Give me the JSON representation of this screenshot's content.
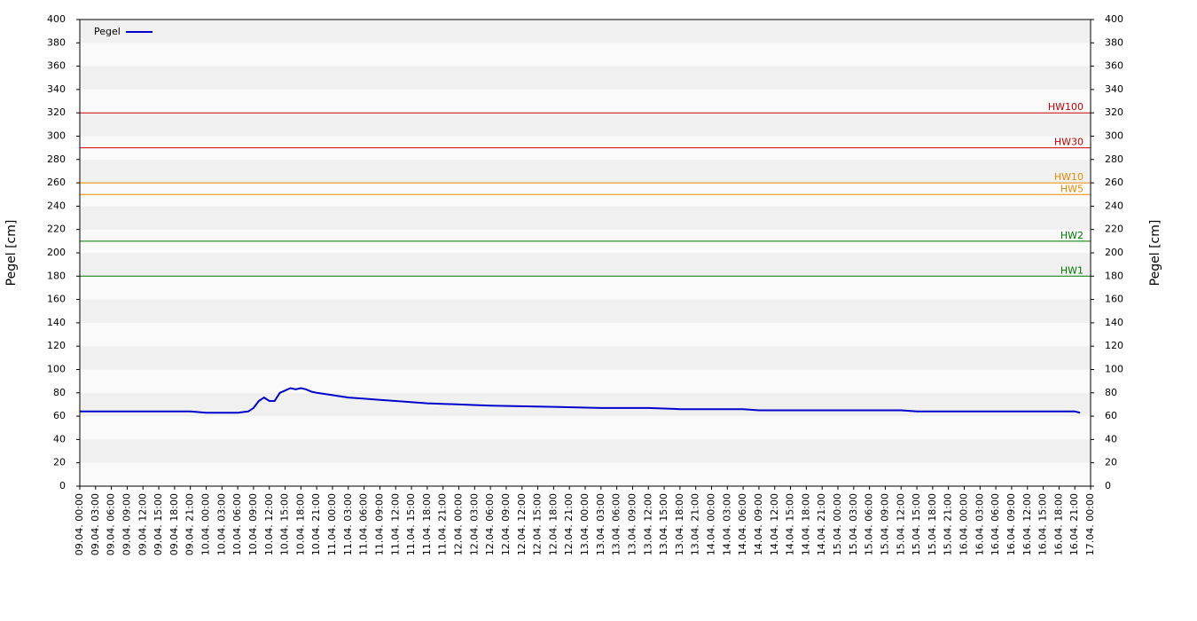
{
  "chart_data": {
    "type": "line",
    "ylabel": "Pegel [cm]",
    "y2label": "Pegel [cm]",
    "ylim": [
      0,
      400
    ],
    "yticks": [
      0,
      20,
      40,
      60,
      80,
      100,
      120,
      140,
      160,
      180,
      200,
      220,
      240,
      260,
      280,
      300,
      320,
      340,
      360,
      380,
      400
    ],
    "y2lim": [
      0,
      400
    ],
    "y2ticks": [
      0,
      20,
      40,
      60,
      80,
      100,
      120,
      140,
      160,
      180,
      200,
      220,
      240,
      260,
      280,
      300,
      320,
      340,
      360,
      380,
      400
    ],
    "xlim": [
      "09.04. 00:00",
      "17.04. 00:00"
    ],
    "xticks": [
      "09.04. 00:00",
      "09.04. 03:00",
      "09.04. 06:00",
      "09.04. 09:00",
      "09.04. 12:00",
      "09.04. 15:00",
      "09.04. 18:00",
      "09.04. 21:00",
      "10.04. 00:00",
      "10.04. 03:00",
      "10.04. 06:00",
      "10.04. 09:00",
      "10.04. 12:00",
      "10.04. 15:00",
      "10.04. 18:00",
      "10.04. 21:00",
      "11.04. 00:00",
      "11.04. 03:00",
      "11.04. 06:00",
      "11.04. 09:00",
      "11.04. 12:00",
      "11.04. 15:00",
      "11.04. 18:00",
      "11.04. 21:00",
      "12.04. 00:00",
      "12.04. 03:00",
      "12.04. 06:00",
      "12.04. 09:00",
      "12.04. 12:00",
      "12.04. 15:00",
      "12.04. 18:00",
      "12.04. 21:00",
      "13.04. 00:00",
      "13.04. 03:00",
      "13.04. 06:00",
      "13.04. 09:00",
      "13.04. 12:00",
      "13.04. 15:00",
      "13.04. 18:00",
      "13.04. 21:00",
      "14.04. 00:00",
      "14.04. 03:00",
      "14.04. 06:00",
      "14.04. 09:00",
      "14.04. 12:00",
      "14.04. 15:00",
      "14.04. 18:00",
      "14.04. 21:00",
      "15.04. 00:00",
      "15.04. 03:00",
      "15.04. 06:00",
      "15.04. 09:00",
      "15.04. 12:00",
      "15.04. 15:00",
      "15.04. 18:00",
      "15.04. 21:00",
      "16.04. 00:00",
      "16.04. 03:00",
      "16.04. 06:00",
      "16.04. 09:00",
      "16.04. 12:00",
      "16.04. 15:00",
      "16.04. 18:00",
      "16.04. 21:00",
      "17.04. 00:00"
    ],
    "grid": true,
    "legend": "top-left",
    "series": [
      {
        "name": "Pegel",
        "color": "#0000cc",
        "x": [
          "09.04. 00:00",
          "09.04. 21:00",
          "10.04. 00:00",
          "10.04. 06:00",
          "10.04. 08:00",
          "10.04. 09:00",
          "10.04. 10:00",
          "10.04. 11:00",
          "10.04. 12:00",
          "10.04. 13:00",
          "10.04. 14:00",
          "10.04. 15:00",
          "10.04. 16:00",
          "10.04. 17:00",
          "10.04. 18:00",
          "10.04. 19:00",
          "10.04. 20:00",
          "10.04. 21:00",
          "11.04. 00:00",
          "11.04. 03:00",
          "11.04. 06:00",
          "11.04. 09:00",
          "11.04. 12:00",
          "11.04. 18:00",
          "12.04. 00:00",
          "12.04. 06:00",
          "12.04. 18:00",
          "13.04. 03:00",
          "13.04. 12:00",
          "13.04. 18:00",
          "14.04. 06:00",
          "14.04. 09:00",
          "15.04. 12:00",
          "15.04. 15:00",
          "16.04. 21:00",
          "16.04. 22:00"
        ],
        "values": [
          64,
          64,
          63,
          63,
          64,
          67,
          73,
          76,
          73,
          73,
          80,
          82,
          84,
          83,
          84,
          83,
          81,
          80,
          78,
          76,
          75,
          74,
          73,
          71,
          70,
          69,
          68,
          67,
          67,
          66,
          66,
          65,
          65,
          64,
          64,
          63
        ]
      }
    ],
    "thresholds": [
      {
        "label": "HW100",
        "value": 320,
        "color": "#cc0000"
      },
      {
        "label": "HW30",
        "value": 290,
        "color": "#cc0000"
      },
      {
        "label": "HW10",
        "value": 260,
        "color": "#ee8800"
      },
      {
        "label": "HW5",
        "value": 250,
        "color": "#ee8800"
      },
      {
        "label": "HW2",
        "value": 210,
        "color": "#007700"
      },
      {
        "label": "HW1",
        "value": 180,
        "color": "#007700"
      }
    ]
  }
}
